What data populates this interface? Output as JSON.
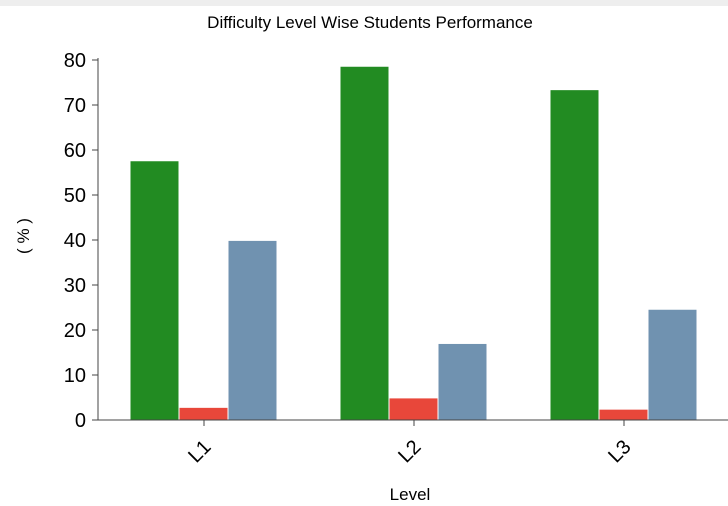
{
  "chart_data": {
    "type": "bar",
    "title": "Difficulty Level Wise Students Performance",
    "xlabel": "Level",
    "ylabel": "( % )",
    "categories": [
      "L1",
      "L2",
      "L3"
    ],
    "series": [
      {
        "values": [
          57.5,
          78.5,
          73.3
        ],
        "color": "#228b22"
      },
      {
        "values": [
          2.7,
          4.8,
          2.3
        ],
        "color": "#e8473a"
      },
      {
        "values": [
          39.8,
          16.9,
          24.5
        ],
        "color": "#7092b0"
      }
    ],
    "ylim": [
      0,
      80
    ],
    "yticks": [
      0,
      10,
      20,
      30,
      40,
      50,
      60,
      70,
      80
    ],
    "grid": false,
    "legend": "none"
  }
}
